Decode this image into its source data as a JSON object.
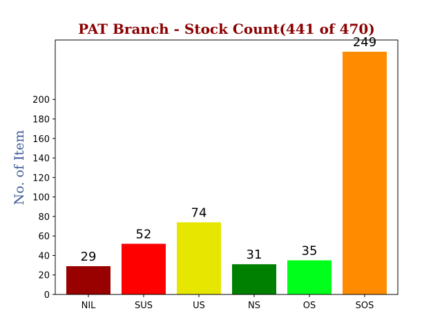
{
  "chart_data": {
    "type": "bar",
    "title": "PAT Branch - Stock Count(441 of 470)",
    "title_color": "#8b0000",
    "xlabel": "",
    "ylabel": "No. of Item",
    "ylabel_color": "#3d5a99",
    "categories": [
      "NIL",
      "SUS",
      "US",
      "NS",
      "OS",
      "SOS"
    ],
    "values": [
      29,
      52,
      74,
      31,
      35,
      249
    ],
    "colors": [
      "#990000",
      "#ff0000",
      "#e6e600",
      "#008000",
      "#00ff1a",
      "#ff8c00"
    ],
    "ylim": [
      0,
      261
    ],
    "yticks": [
      0,
      20,
      40,
      60,
      80,
      100,
      120,
      140,
      160,
      180,
      200
    ],
    "grid": false,
    "legend": "none"
  }
}
